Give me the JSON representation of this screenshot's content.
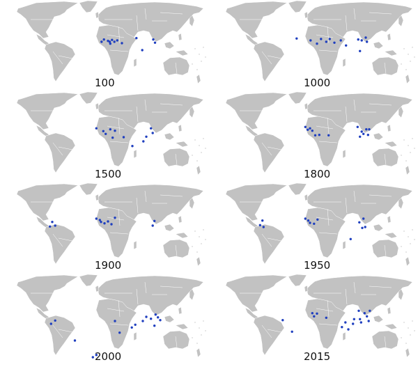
{
  "colors": {
    "land": "#c2c2c2",
    "border": "#ffffff",
    "dot": "#1f3fbf",
    "ocean": "#ffffff",
    "label": "#111111"
  },
  "panels": [
    {
      "year": "100",
      "cities": [
        [
          -5,
          0
        ],
        [
          -1,
          5
        ],
        [
          6,
          2
        ],
        [
          9,
          0
        ],
        [
          10,
          -4
        ],
        [
          13,
          4
        ],
        [
          17,
          0
        ],
        [
          22,
          3
        ],
        [
          30,
          -3
        ],
        [
          55,
          8
        ],
        [
          65,
          -18
        ],
        [
          84,
          5
        ],
        [
          87,
          -2
        ]
      ]
    },
    {
      "year": "1000",
      "cities": [
        [
          -29,
          7
        ],
        [
          -5,
          3
        ],
        [
          6,
          -4
        ],
        [
          13,
          6
        ],
        [
          22,
          0
        ],
        [
          28,
          6
        ],
        [
          36,
          -2
        ],
        [
          47,
          3
        ],
        [
          56,
          -8
        ],
        [
          77,
          5
        ],
        [
          80,
          -20
        ],
        [
          83,
          3
        ],
        [
          90,
          9
        ],
        [
          92,
          0
        ]
      ]
    },
    {
      "year": "1500",
      "cities": [
        [
          -14,
          10
        ],
        [
          -2,
          4
        ],
        [
          2,
          -2
        ],
        [
          10,
          8
        ],
        [
          14,
          -10
        ],
        [
          18,
          5
        ],
        [
          33,
          -9
        ],
        [
          48,
          -28
        ],
        [
          67,
          -18
        ],
        [
          72,
          -8
        ],
        [
          80,
          10
        ],
        [
          83,
          0
        ]
      ]
    },
    {
      "year": "1800",
      "cities": [
        [
          -14,
          13
        ],
        [
          -10,
          7
        ],
        [
          -6,
          10
        ],
        [
          -2,
          5
        ],
        [
          3,
          -5
        ],
        [
          10,
          -4
        ],
        [
          26,
          -5
        ],
        [
          76,
          13
        ],
        [
          80,
          -8
        ],
        [
          83,
          3
        ],
        [
          86,
          -2
        ],
        [
          91,
          8
        ],
        [
          94,
          -4
        ],
        [
          96,
          8
        ]
      ]
    },
    {
      "year": "1900",
      "cities": [
        [
          -94,
          -5
        ],
        [
          -90,
          5
        ],
        [
          -85,
          -3
        ],
        [
          -14,
          12
        ],
        [
          -8,
          9
        ],
        [
          -6,
          5
        ],
        [
          0,
          2
        ],
        [
          6,
          6
        ],
        [
          12,
          0
        ],
        [
          18,
          14
        ],
        [
          83,
          -3
        ],
        [
          86,
          7
        ]
      ]
    },
    {
      "year": "1950",
      "cities": [
        [
          -92,
          -2
        ],
        [
          -88,
          8
        ],
        [
          -86,
          -6
        ],
        [
          -14,
          12
        ],
        [
          -9,
          8
        ],
        [
          -6,
          3
        ],
        [
          1,
          1
        ],
        [
          7,
          10
        ],
        [
          79,
          4
        ],
        [
          84,
          -8
        ],
        [
          86,
          12
        ],
        [
          89,
          -6
        ],
        [
          64,
          -32
        ]
      ]
    },
    {
      "year": "2000",
      "cities": [
        [
          -92,
          -18
        ],
        [
          -85,
          -11
        ],
        [
          -51,
          -54
        ],
        [
          -20,
          -90
        ],
        [
          -14,
          -85
        ],
        [
          18,
          -12
        ],
        [
          26,
          -37
        ],
        [
          47,
          -26
        ],
        [
          53,
          -20
        ],
        [
          66,
          -12
        ],
        [
          72,
          -3
        ],
        [
          80,
          -7
        ],
        [
          86,
          -22
        ],
        [
          88,
          2
        ],
        [
          92,
          -4
        ],
        [
          96,
          -10
        ]
      ]
    },
    {
      "year": "2015",
      "cities": [
        [
          -53,
          -10
        ],
        [
          -37,
          -35
        ],
        [
          -2,
          5
        ],
        [
          1,
          -2
        ],
        [
          6,
          4
        ],
        [
          22,
          -5
        ],
        [
          49,
          -25
        ],
        [
          55,
          -15
        ],
        [
          60,
          -30
        ],
        [
          68,
          -18
        ],
        [
          70,
          -8
        ],
        [
          78,
          10
        ],
        [
          80,
          -8
        ],
        [
          82,
          -15
        ],
        [
          88,
          5
        ],
        [
          92,
          -2
        ],
        [
          95,
          -12
        ],
        [
          97,
          10
        ]
      ]
    }
  ]
}
